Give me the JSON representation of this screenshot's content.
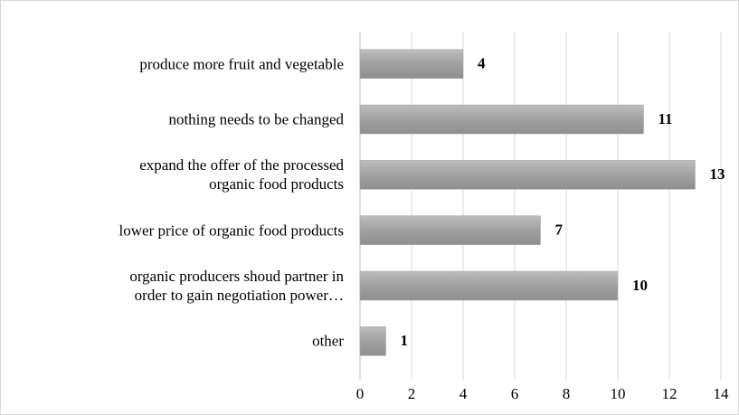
{
  "chart_data": {
    "type": "barh",
    "categories": [
      "produce more fruit and vegetable",
      "nothing needs to be changed",
      "expand the offer of the processed\norganic food products",
      "lower price of organic food products",
      "organic producers shoud partner in\norder to gain negotiation power…",
      "other"
    ],
    "values": [
      4,
      11,
      13,
      7,
      10,
      1
    ],
    "color": "#a6a6a6",
    "xlim": [
      0,
      14
    ],
    "xticks": [
      0,
      2,
      4,
      6,
      8,
      10,
      12,
      14
    ],
    "grid": true
  }
}
